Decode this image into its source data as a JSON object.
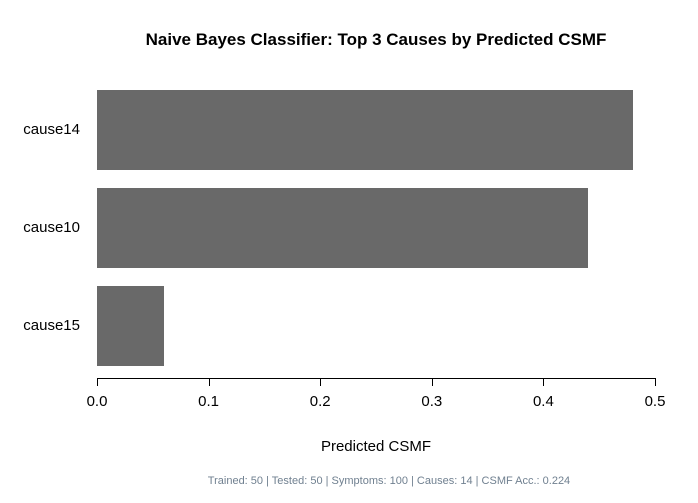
{
  "chart_data": {
    "type": "bar",
    "orientation": "horizontal",
    "title": "Naive Bayes Classifier: Top 3 Causes by Predicted CSMF",
    "categories": [
      "cause14",
      "cause10",
      "cause15"
    ],
    "values": [
      0.48,
      0.44,
      0.06
    ],
    "xlabel": "Predicted CSMF",
    "ylabel": "",
    "xlim": [
      0,
      0.5
    ],
    "x_ticks": [
      0.0,
      0.1,
      0.2,
      0.3,
      0.4,
      0.5
    ],
    "x_tick_labels": [
      "0.0",
      "0.1",
      "0.2",
      "0.3",
      "0.4",
      "0.5"
    ],
    "bar_color": "#696969",
    "axis_color": "#000000",
    "grid": false,
    "legend": null
  },
  "footer": {
    "text": "Trained: 50 | Tested: 50 | Symptoms: 100 | Causes: 14 | CSMF Acc.: 0.224",
    "color": "#708090"
  }
}
